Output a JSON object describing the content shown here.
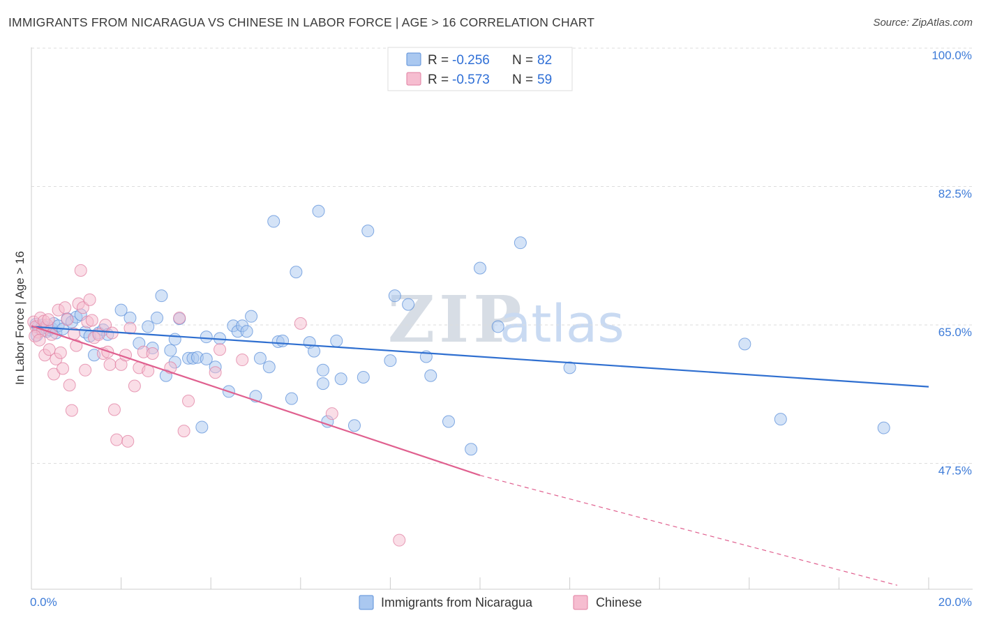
{
  "header": {
    "title": "IMMIGRANTS FROM NICARAGUA VS CHINESE IN LABOR FORCE | AGE > 16 CORRELATION CHART",
    "source": "Source: ZipAtlas.com"
  },
  "watermark": {
    "zip": "ZIP",
    "atlas": "atlas"
  },
  "legend": {
    "rows": [
      {
        "r_label": "R = ",
        "r_value": "-0.256",
        "n_label": "N = ",
        "n_value": "82"
      },
      {
        "r_label": "R = ",
        "r_value": "-0.573",
        "n_label": "N = ",
        "n_value": "59"
      }
    ]
  },
  "colors": {
    "blue_fill": "#aac8f0",
    "blue_stroke": "#5b8fd9",
    "blue_line": "#2f6fd0",
    "pink_fill": "#f6bdd0",
    "pink_stroke": "#e07ea0",
    "pink_line": "#e0608f",
    "tick_text": "#3d7bd8",
    "grid": "#dddddd"
  },
  "chart_data": {
    "type": "scatter",
    "title": "IMMIGRANTS FROM NICARAGUA VS CHINESE IN LABOR FORCE | AGE > 16 CORRELATION CHART",
    "xlabel": "",
    "ylabel": "In Labor Force | Age > 16",
    "xlim": [
      0,
      20
    ],
    "ylim": [
      33,
      101.5
    ],
    "x_tick_labels": [
      "0.0%",
      "20.0%"
    ],
    "y_ticks": [
      47.5,
      65.0,
      82.5,
      100.0
    ],
    "y_tick_labels": [
      "47.5%",
      "65.0%",
      "82.5%",
      "100.0%"
    ],
    "series": [
      {
        "name": "Immigrants from Nicaragua",
        "color": "blue",
        "trend": {
          "x0": 0.0,
          "y0": 66.2,
          "x1": 20.0,
          "y1": 58.6
        },
        "points": [
          [
            0.1,
            66.5
          ],
          [
            0.15,
            66.2
          ],
          [
            0.2,
            65.9
          ],
          [
            0.25,
            66.4
          ],
          [
            0.3,
            66.1
          ],
          [
            0.35,
            65.6
          ],
          [
            0.4,
            65.8
          ],
          [
            0.45,
            66.0
          ],
          [
            0.5,
            66.6
          ],
          [
            0.55,
            65.4
          ],
          [
            0.6,
            66.3
          ],
          [
            0.7,
            65.9
          ],
          [
            0.8,
            67.2
          ],
          [
            0.9,
            66.8
          ],
          [
            1.0,
            67.4
          ],
          [
            1.1,
            67.7
          ],
          [
            1.2,
            65.5
          ],
          [
            1.3,
            65.0
          ],
          [
            1.4,
            62.6
          ],
          [
            1.5,
            65.4
          ],
          [
            1.6,
            65.8
          ],
          [
            1.7,
            65.2
          ],
          [
            2.0,
            68.3
          ],
          [
            2.2,
            67.3
          ],
          [
            2.4,
            64.1
          ],
          [
            2.6,
            66.2
          ],
          [
            2.7,
            63.5
          ],
          [
            2.8,
            67.3
          ],
          [
            2.9,
            70.1
          ],
          [
            3.0,
            60.0
          ],
          [
            3.1,
            63.2
          ],
          [
            3.2,
            64.6
          ],
          [
            3.2,
            61.7
          ],
          [
            3.3,
            67.2
          ],
          [
            3.5,
            62.2
          ],
          [
            3.6,
            62.2
          ],
          [
            3.7,
            62.3
          ],
          [
            3.9,
            62.1
          ],
          [
            3.9,
            64.9
          ],
          [
            3.8,
            53.5
          ],
          [
            4.1,
            61.1
          ],
          [
            4.2,
            64.7
          ],
          [
            4.4,
            58.0
          ],
          [
            4.5,
            66.3
          ],
          [
            4.6,
            65.6
          ],
          [
            4.7,
            66.3
          ],
          [
            4.8,
            65.6
          ],
          [
            4.9,
            67.5
          ],
          [
            5.0,
            57.4
          ],
          [
            5.1,
            62.2
          ],
          [
            5.3,
            61.1
          ],
          [
            5.4,
            79.5
          ],
          [
            5.5,
            64.3
          ],
          [
            5.6,
            64.4
          ],
          [
            5.8,
            57.1
          ],
          [
            5.9,
            73.1
          ],
          [
            6.2,
            64.2
          ],
          [
            6.3,
            63.1
          ],
          [
            6.4,
            80.8
          ],
          [
            6.5,
            60.7
          ],
          [
            6.5,
            59.0
          ],
          [
            6.6,
            54.2
          ],
          [
            6.8,
            64.4
          ],
          [
            6.9,
            59.6
          ],
          [
            7.2,
            53.7
          ],
          [
            7.4,
            59.8
          ],
          [
            7.5,
            78.3
          ],
          [
            8.0,
            61.9
          ],
          [
            8.1,
            70.1
          ],
          [
            8.4,
            69.0
          ],
          [
            8.8,
            62.4
          ],
          [
            8.9,
            60.0
          ],
          [
            9.3,
            54.2
          ],
          [
            9.8,
            50.7
          ],
          [
            10.0,
            73.6
          ],
          [
            10.4,
            66.2
          ],
          [
            10.9,
            76.8
          ],
          [
            12.0,
            61.0
          ],
          [
            15.9,
            64.0
          ],
          [
            16.7,
            54.5
          ],
          [
            19.0,
            53.4
          ],
          [
            0.12,
            65.1
          ]
        ]
      },
      {
        "name": "Chinese",
        "color": "pink",
        "trend": {
          "x0": 0.0,
          "y0": 66.3,
          "x1": 10.0,
          "y1": 47.4,
          "dash_to_x": 19.3,
          "dash_to_y": 33.5
        },
        "points": [
          [
            0.05,
            66.8
          ],
          [
            0.1,
            66.2
          ],
          [
            0.15,
            65.5
          ],
          [
            0.2,
            67.3
          ],
          [
            0.25,
            65.7
          ],
          [
            0.3,
            62.6
          ],
          [
            0.35,
            66.4
          ],
          [
            0.4,
            63.3
          ],
          [
            0.45,
            65.2
          ],
          [
            0.5,
            60.2
          ],
          [
            0.55,
            62.1
          ],
          [
            0.6,
            68.3
          ],
          [
            0.65,
            62.9
          ],
          [
            0.7,
            60.9
          ],
          [
            0.75,
            68.6
          ],
          [
            0.8,
            67.1
          ],
          [
            0.85,
            58.8
          ],
          [
            0.9,
            55.6
          ],
          [
            0.95,
            65.3
          ],
          [
            1.0,
            63.8
          ],
          [
            1.05,
            69.1
          ],
          [
            1.1,
            73.3
          ],
          [
            1.15,
            68.6
          ],
          [
            1.2,
            60.7
          ],
          [
            1.25,
            66.8
          ],
          [
            1.3,
            69.6
          ],
          [
            1.35,
            67.0
          ],
          [
            1.4,
            64.8
          ],
          [
            1.5,
            65.2
          ],
          [
            1.6,
            62.8
          ],
          [
            1.65,
            66.4
          ],
          [
            1.7,
            63.0
          ],
          [
            1.75,
            61.4
          ],
          [
            1.8,
            65.4
          ],
          [
            1.85,
            55.7
          ],
          [
            1.9,
            51.9
          ],
          [
            2.0,
            61.4
          ],
          [
            2.1,
            62.6
          ],
          [
            2.15,
            51.7
          ],
          [
            2.2,
            66.0
          ],
          [
            2.3,
            58.7
          ],
          [
            2.4,
            61.0
          ],
          [
            2.5,
            63.0
          ],
          [
            2.6,
            60.6
          ],
          [
            2.7,
            62.8
          ],
          [
            3.1,
            61.0
          ],
          [
            3.3,
            67.3
          ],
          [
            3.4,
            53.0
          ],
          [
            3.5,
            56.8
          ],
          [
            4.1,
            60.4
          ],
          [
            4.2,
            63.3
          ],
          [
            4.7,
            62.0
          ],
          [
            6.0,
            66.6
          ],
          [
            6.7,
            55.2
          ],
          [
            8.2,
            39.2
          ],
          [
            0.08,
            65.0
          ],
          [
            0.18,
            64.5
          ],
          [
            0.28,
            66.9
          ],
          [
            0.38,
            67.1
          ]
        ]
      }
    ]
  },
  "bottom_legend": {
    "items": [
      {
        "label": "Immigrants from Nicaragua",
        "color": "blue"
      },
      {
        "label": "Chinese",
        "color": "pink"
      }
    ]
  }
}
